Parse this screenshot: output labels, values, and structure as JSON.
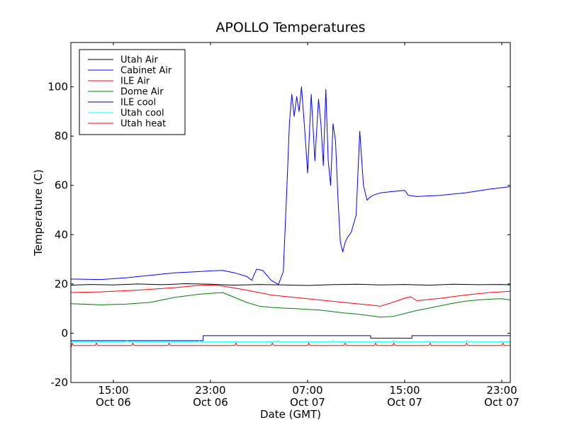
{
  "chart_data": {
    "type": "line",
    "title": "APOLLO Temperatures",
    "xlabel": "Date (GMT)",
    "ylabel": "Temperature (C)",
    "xlim": [
      11.5,
      47.7
    ],
    "ylim": [
      -20,
      118
    ],
    "yticks": [
      -20,
      0,
      20,
      40,
      60,
      80,
      100
    ],
    "xticks": [
      {
        "x": 15,
        "line1": "15:00",
        "line2": "Oct 06"
      },
      {
        "x": 23,
        "line1": "23:00",
        "line2": "Oct 06"
      },
      {
        "x": 31,
        "line1": "07:00",
        "line2": "Oct 07"
      },
      {
        "x": 39,
        "line1": "15:00",
        "line2": "Oct 07"
      },
      {
        "x": 47,
        "line1": "23:00",
        "line2": "Oct 07"
      }
    ],
    "legend_position": "top-left",
    "series": [
      {
        "name": "Utah Air",
        "color": "#000000",
        "x": [
          11.5,
          13,
          15,
          17,
          19,
          21,
          23,
          25,
          27,
          29,
          31,
          33,
          35,
          37,
          39,
          41,
          43,
          45,
          47,
          47.7
        ],
        "y": [
          19.5,
          19.8,
          19.6,
          20.0,
          19.7,
          20.1,
          19.9,
          19.5,
          19.8,
          19.6,
          19.4,
          19.7,
          19.9,
          19.6,
          19.8,
          19.5,
          19.9,
          19.7,
          19.8,
          19.6
        ]
      },
      {
        "name": "Cabinet Air",
        "color": "#0000ff",
        "x": [
          11.5,
          14,
          16,
          18,
          20,
          22,
          23,
          24,
          25,
          26,
          26.4,
          26.8,
          27.3,
          28,
          28.6,
          29,
          29.3,
          29.5,
          29.7,
          29.9,
          30.1,
          30.3,
          30.5,
          30.8,
          31,
          31.3,
          31.6,
          31.9,
          32.1,
          32.3,
          32.5,
          32.7,
          32.9,
          33.1,
          33.3,
          33.5,
          33.7,
          33.9,
          34.1,
          34.3,
          34.6,
          35,
          35.3,
          35.6,
          35.9,
          36.1,
          36.4,
          37,
          38,
          39,
          39.3,
          40,
          42,
          44,
          46,
          47.7
        ],
        "y": [
          22,
          21.8,
          22.5,
          23.5,
          24.5,
          25,
          25.3,
          25.5,
          24.5,
          23,
          21.5,
          26,
          25.5,
          21.5,
          19.8,
          25,
          60,
          85,
          97,
          88,
          96,
          90,
          100,
          80,
          65,
          97,
          70,
          95,
          85,
          68,
          99,
          70,
          60,
          85,
          78,
          55,
          37,
          33,
          37,
          39,
          41,
          48,
          82,
          60,
          54,
          55,
          56,
          57,
          57.5,
          58,
          56,
          55.5,
          56,
          57,
          58.5,
          59.5
        ]
      },
      {
        "name": "ILE Air",
        "color": "#ff0000",
        "x": [
          11.5,
          14,
          17,
          20,
          22,
          23,
          24,
          26,
          28,
          30,
          32,
          34,
          36,
          37,
          38,
          39,
          39.5,
          40,
          42,
          44,
          46,
          47.7
        ],
        "y": [
          16.5,
          16.8,
          17.5,
          18.5,
          19.4,
          19.6,
          19.2,
          17.5,
          15.5,
          14.5,
          13.5,
          12.5,
          11.5,
          11,
          12.5,
          14.2,
          14.8,
          13.2,
          14.2,
          15.5,
          16.5,
          17
        ]
      },
      {
        "name": "Dome Air",
        "color": "#008000",
        "x": [
          11.5,
          14,
          16,
          18,
          20,
          22,
          23,
          24,
          25,
          26,
          27,
          28,
          29,
          30,
          31,
          32,
          33,
          34,
          35,
          36,
          37,
          38,
          39,
          40,
          41,
          42,
          43,
          44,
          45,
          46,
          47,
          47.7
        ],
        "y": [
          12,
          11.5,
          11.8,
          12.5,
          14.5,
          15.8,
          16.2,
          16.5,
          14.5,
          12.5,
          11,
          10.5,
          10.2,
          10,
          9.7,
          9.4,
          8.8,
          8.2,
          7.8,
          7.2,
          6.5,
          6.8,
          8,
          9.2,
          10.2,
          11.2,
          12.2,
          13,
          13.5,
          13.8,
          14,
          13.5
        ]
      },
      {
        "name": "ILE cool",
        "color": "#000080",
        "x": [
          11.5,
          22.4,
          22.4,
          36.2,
          36.2,
          39.6,
          39.6,
          47.7
        ],
        "y": [
          -3,
          -3,
          -1,
          -1,
          -2,
          -2,
          -1,
          -1
        ]
      },
      {
        "name": "Utah cool",
        "color": "#00ffff",
        "x": [
          11.5,
          16,
          16.1,
          16.2,
          22,
          22.1,
          22.2,
          28.5,
          28.6,
          28.7,
          33,
          33.1,
          33.2,
          38,
          38.1,
          38.2,
          44,
          44.1,
          44.2,
          47.7
        ],
        "y": [
          -3.5,
          -3.5,
          -3,
          -3.5,
          -3.5,
          -3,
          -3.5,
          -3.5,
          -3,
          -3.5,
          -3.5,
          -3,
          -3.5,
          -3.5,
          -3,
          -3.5,
          -3.5,
          -3,
          -3.5,
          -3.5
        ]
      },
      {
        "name": "Utah heat",
        "color": "#ff0000",
        "x": [
          11.5,
          11.6,
          11.7,
          13.5,
          13.6,
          13.7,
          16.5,
          16.6,
          16.7,
          19.5,
          19.6,
          19.7,
          25,
          25.1,
          25.2,
          28,
          28.1,
          28.2,
          31,
          31.1,
          31.2,
          34,
          34.1,
          34.2,
          36.5,
          36.6,
          36.7,
          38,
          38.1,
          38.2,
          41,
          41.1,
          41.2,
          44,
          44.1,
          44.2,
          47,
          47.1,
          47.2,
          47.7
        ],
        "y": [
          -6,
          -4,
          -5,
          -5,
          -4,
          -5,
          -5,
          -4,
          -5,
          -5,
          -4,
          -5,
          -5,
          -4,
          -5,
          -5,
          -4,
          -5,
          -5,
          -4,
          -5,
          -5,
          -4,
          -5,
          -5,
          -4,
          -5,
          -5,
          -4,
          -5,
          -5,
          -4,
          -5,
          -5,
          -4,
          -5,
          -5,
          -4,
          -5,
          -5
        ]
      }
    ]
  }
}
